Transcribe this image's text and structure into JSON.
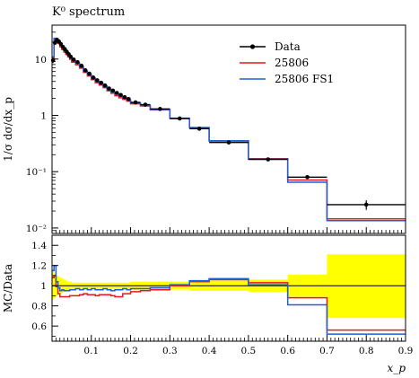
{
  "chart_data": {
    "type": "line",
    "title": "K⁰ spectrum",
    "xlabel": "x_p",
    "top_panel": {
      "ylabel": "1/σ dσ/dx_p",
      "yscale": "log",
      "ylim": [
        0.008,
        40
      ],
      "ytick_labels": [
        "10",
        "1",
        "10⁻¹",
        "10⁻²"
      ],
      "legend_position": "top-right"
    },
    "ratio_panel": {
      "ylabel": "MC/Data",
      "ylim": [
        0.45,
        1.5
      ],
      "ytick_labels": [
        "0.6",
        "0.8",
        "1",
        "1.2",
        "1.4"
      ],
      "band_color": "#ffff00"
    },
    "xlim": [
      0,
      0.9
    ],
    "xtick_labels": [
      "0.1",
      "0.2",
      "0.3",
      "0.4",
      "0.5",
      "0.6",
      "0.7",
      "0.8",
      "0.9"
    ],
    "bin_edges": [
      0.0,
      0.005,
      0.01,
      0.015,
      0.02,
      0.025,
      0.03,
      0.035,
      0.04,
      0.045,
      0.05,
      0.06,
      0.07,
      0.08,
      0.09,
      0.1,
      0.11,
      0.12,
      0.13,
      0.14,
      0.15,
      0.16,
      0.17,
      0.18,
      0.19,
      0.2,
      0.225,
      0.25,
      0.3,
      0.35,
      0.4,
      0.5,
      0.6,
      0.7,
      0.9
    ],
    "series": [
      {
        "name": "Data",
        "color": "#000000",
        "values": [
          9.5,
          19.5,
          22.0,
          20.5,
          18.5,
          16.5,
          15.0,
          13.5,
          12.2,
          11.0,
          9.8,
          8.8,
          7.6,
          6.3,
          5.5,
          4.7,
          4.2,
          3.8,
          3.4,
          3.0,
          2.75,
          2.5,
          2.3,
          2.1,
          1.95,
          1.7,
          1.55,
          1.3,
          0.88,
          0.58,
          0.33,
          0.165,
          0.08,
          0.026
        ],
        "errors": [
          1.0,
          1.4,
          1.4,
          1.2,
          1.0,
          0.9,
          0.8,
          0.7,
          0.6,
          0.5,
          0.45,
          0.35,
          0.3,
          0.25,
          0.2,
          0.18,
          0.15,
          0.13,
          0.12,
          0.1,
          0.09,
          0.08,
          0.07,
          0.06,
          0.06,
          0.05,
          0.04,
          0.035,
          0.025,
          0.017,
          0.01,
          0.006,
          0.005,
          0.005
        ],
        "band_values": [
          0.86,
          0.88,
          0.9,
          0.91,
          0.92,
          0.93,
          0.94,
          0.95,
          0.96,
          0.96,
          0.97,
          0.97,
          0.97,
          0.97,
          0.97,
          0.97,
          0.97,
          0.97,
          0.97,
          0.97,
          0.97,
          0.97,
          0.97,
          0.97,
          0.97,
          0.96,
          0.96,
          0.96,
          0.96,
          0.95,
          0.95,
          0.94,
          0.89,
          0.68
        ],
        "band_upper": [
          1.14,
          1.12,
          1.1,
          1.09,
          1.08,
          1.07,
          1.06,
          1.05,
          1.04,
          1.04,
          1.03,
          1.03,
          1.03,
          1.03,
          1.03,
          1.03,
          1.03,
          1.03,
          1.03,
          1.03,
          1.03,
          1.03,
          1.03,
          1.03,
          1.03,
          1.04,
          1.04,
          1.04,
          1.04,
          1.05,
          1.05,
          1.06,
          1.11,
          1.31
        ]
      },
      {
        "name": "25806",
        "color": "#e41a1c",
        "values": [
          10.3,
          21.5,
          21.8,
          18.9,
          16.5,
          14.7,
          13.3,
          12.0,
          10.9,
          9.9,
          8.8,
          7.9,
          6.9,
          5.8,
          5.0,
          4.3,
          3.8,
          3.45,
          3.1,
          2.73,
          2.47,
          2.23,
          2.05,
          1.93,
          1.79,
          1.6,
          1.47,
          1.25,
          0.88,
          0.6,
          0.35,
          0.17,
          0.071,
          0.0145
        ],
        "ratio": [
          1.08,
          1.1,
          0.99,
          0.92,
          0.89,
          0.89,
          0.89,
          0.89,
          0.89,
          0.9,
          0.9,
          0.9,
          0.91,
          0.92,
          0.91,
          0.91,
          0.9,
          0.91,
          0.91,
          0.91,
          0.9,
          0.89,
          0.89,
          0.92,
          0.92,
          0.94,
          0.95,
          0.96,
          1.0,
          1.04,
          1.06,
          1.03,
          0.88,
          0.56
        ]
      },
      {
        "name": "25806 FS1",
        "color": "#1f5fd6",
        "values": [
          10.9,
          23.4,
          22.9,
          20.1,
          17.6,
          15.8,
          14.3,
          12.8,
          11.6,
          10.6,
          9.4,
          8.5,
          7.3,
          6.1,
          5.3,
          4.6,
          4.0,
          3.65,
          3.3,
          2.88,
          2.61,
          2.4,
          2.2,
          2.04,
          1.87,
          1.65,
          1.5,
          1.27,
          0.89,
          0.61,
          0.355,
          0.167,
          0.065,
          0.0135
        ],
        "ratio": [
          1.15,
          1.2,
          1.04,
          0.98,
          0.95,
          0.96,
          0.95,
          0.95,
          0.95,
          0.96,
          0.96,
          0.97,
          0.96,
          0.97,
          0.96,
          0.97,
          0.96,
          0.96,
          0.97,
          0.96,
          0.95,
          0.96,
          0.96,
          0.97,
          0.96,
          0.97,
          0.97,
          0.98,
          1.01,
          1.05,
          1.07,
          1.01,
          0.81,
          0.52
        ]
      }
    ]
  }
}
